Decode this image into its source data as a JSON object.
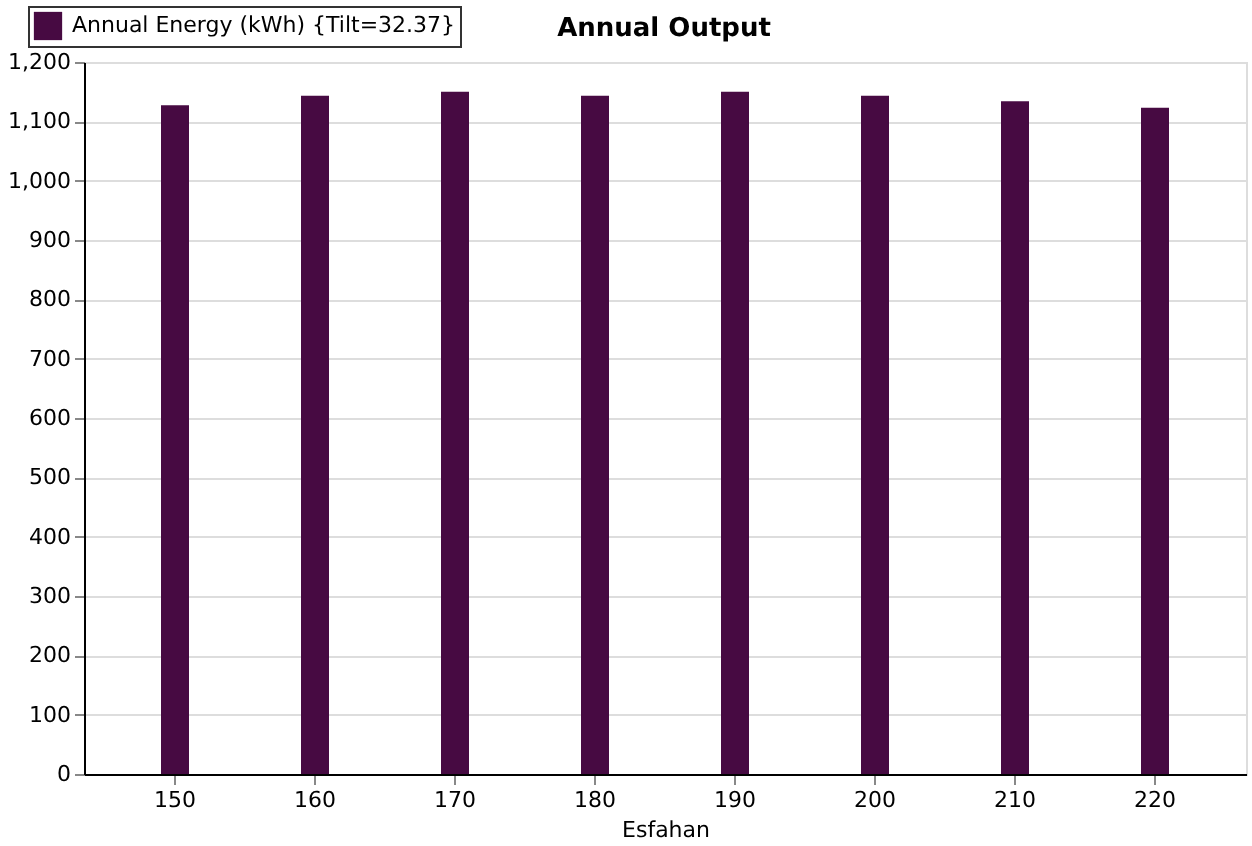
{
  "chart_data": {
    "type": "bar",
    "title": "Annual Output",
    "xlabel": "Esfahan",
    "categories": [
      "150",
      "160",
      "170",
      "180",
      "190",
      "200",
      "210",
      "220"
    ],
    "series": [
      {
        "name": "Annual Energy (kWh) {Tilt=32.37}",
        "color": "#470a42",
        "values": [
          1127,
          1143,
          1150,
          1143,
          1150,
          1143,
          1134,
          1123
        ]
      }
    ],
    "ylim": [
      0,
      1200
    ],
    "yticks": [
      0,
      100,
      200,
      300,
      400,
      500,
      600,
      700,
      800,
      900,
      {
        "value": 1000,
        "label": "1,000"
      },
      {
        "value": 1100,
        "label": "1,100"
      },
      {
        "value": 1200,
        "label": "1,200"
      }
    ],
    "grid": "y",
    "legend": "top left"
  }
}
